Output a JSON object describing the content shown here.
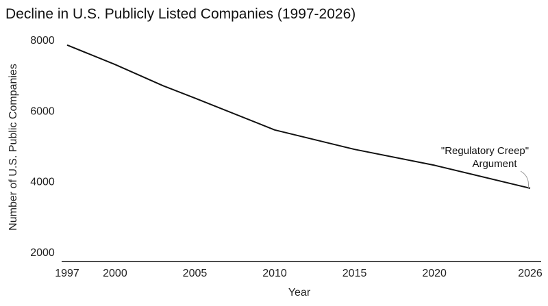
{
  "chart_data": {
    "type": "line",
    "title": "Decline in U.S. Publicly Listed Companies (1997-2026)",
    "xlabel": "Year",
    "ylabel": "Number of U.S. Public Companies",
    "xlim": [
      1997,
      2026
    ],
    "ylim": [
      2000,
      8000
    ],
    "x_ticks": [
      1997,
      2000,
      2005,
      2010,
      2015,
      2020,
      2026
    ],
    "y_ticks": [
      2000,
      4000,
      6000,
      8000
    ],
    "grid": false,
    "series": [
      {
        "x": [
          1997,
          2000,
          2003,
          2005,
          2010,
          2015,
          2020,
          2026
        ],
        "y": [
          7850,
          7300,
          6700,
          6350,
          5450,
          4900,
          4450,
          3800
        ],
        "color": "#111111"
      }
    ],
    "annotations": [
      {
        "line1": "\"Regulatory Creep\"",
        "line2": "Argument",
        "x": 2026,
        "y": 3800
      }
    ]
  }
}
